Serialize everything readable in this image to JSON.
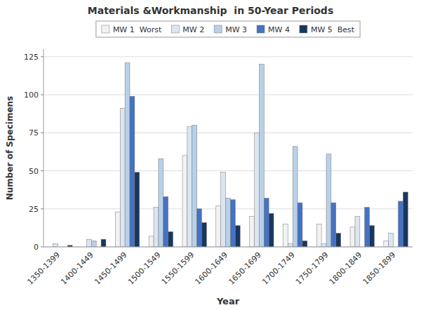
{
  "chart_data": {
    "type": "bar",
    "title": "Materials &Workmanship  in 50-Year Periods",
    "xlabel": "Year",
    "ylabel": "Number of Specimens",
    "categories": [
      "1350-1399",
      "1400-1449",
      "1450-1499",
      "1500-1549",
      "1550-1599",
      "1600-1649",
      "1650-1699",
      "1700-1749",
      "1750-1799",
      "1800-1849",
      "1850-1899"
    ],
    "series": [
      {
        "name": "MW 1  Worst",
        "color": "#f2f2f2",
        "values": [
          0,
          0,
          23,
          7,
          60,
          27,
          20,
          15,
          15,
          13,
          4
        ]
      },
      {
        "name": "MW 2",
        "color": "#dce6f1",
        "values": [
          2,
          5,
          91,
          26,
          79,
          49,
          75,
          2,
          2,
          20,
          9
        ]
      },
      {
        "name": "MW 3",
        "color": "#b8d0e8",
        "values": [
          0,
          4,
          121,
          58,
          80,
          32,
          120,
          66,
          61,
          0,
          0
        ]
      },
      {
        "name": "MW 4",
        "color": "#4472c4",
        "values": [
          0,
          0,
          99,
          33,
          25,
          31,
          32,
          29,
          29,
          26,
          30
        ]
      },
      {
        "name": "MW 5  Best",
        "color": "#17375e",
        "values": [
          1,
          5,
          49,
          10,
          16,
          14,
          22,
          4,
          9,
          14,
          36
        ]
      }
    ],
    "ylim": [
      0,
      130
    ],
    "yticks": [
      0,
      25,
      50,
      75,
      100,
      125
    ],
    "grid": true,
    "legend": "top"
  }
}
